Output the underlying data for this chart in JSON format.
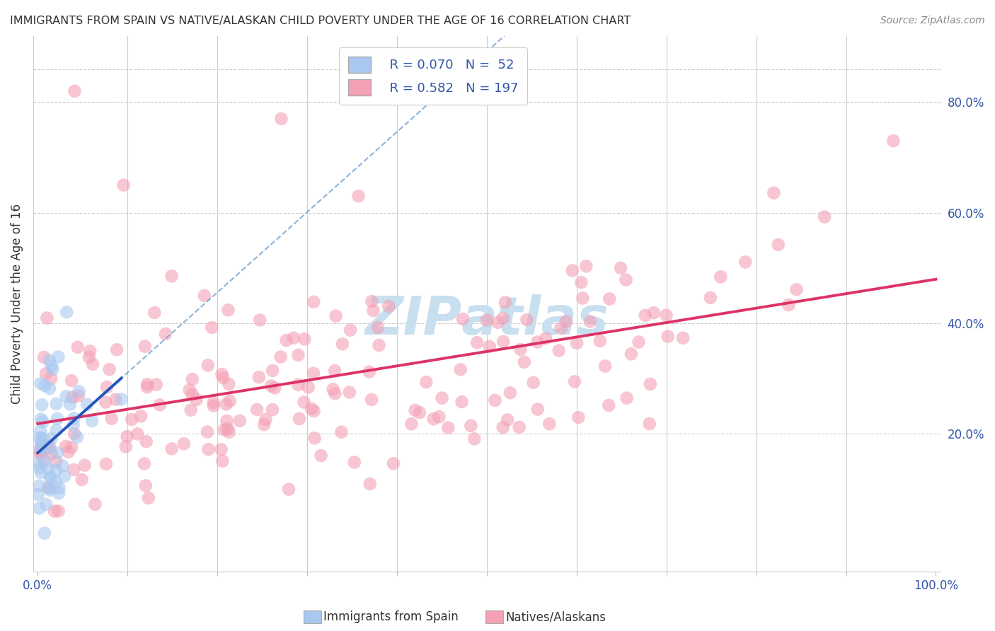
{
  "title": "IMMIGRANTS FROM SPAIN VS NATIVE/ALASKAN CHILD POVERTY UNDER THE AGE OF 16 CORRELATION CHART",
  "source": "Source: ZipAtlas.com",
  "xlabel_blue": "Immigrants from Spain",
  "xlabel_pink": "Natives/Alaskans",
  "ylabel": "Child Poverty Under the Age of 16",
  "legend_blue_R": "R = 0.070",
  "legend_blue_N": "N =  52",
  "legend_pink_R": "R = 0.582",
  "legend_pink_N": "N = 197",
  "blue_scatter_color": "#a8c8f0",
  "pink_scatter_color": "#f4a0b5",
  "blue_line_color": "#2255bb",
  "pink_line_color": "#dd3366",
  "dash_line_color": "#6699cc",
  "watermark_color": "#c8dff0",
  "title_color": "#333333",
  "source_color": "#888888",
  "axis_label_color": "#3355aa",
  "ylabel_color": "#333333",
  "grid_color": "#cccccc",
  "legend_text_color": "#3355aa",
  "xlim": [
    -0.005,
    1.005
  ],
  "ylim": [
    -0.05,
    0.92
  ],
  "y_ticks": [
    0.2,
    0.4,
    0.6,
    0.8
  ],
  "y_tick_labels": [
    "20.0%",
    "40.0%",
    "60.0%",
    "80.0%"
  ],
  "x_ticks": [
    0.0,
    0.1,
    0.2,
    0.3,
    0.4,
    0.5,
    0.6,
    0.7,
    0.8,
    0.9,
    1.0
  ],
  "x_tick_labels_show": [
    "0.0%",
    "",
    "",
    "",
    "",
    "",
    "",
    "",
    "",
    "",
    "100.0%"
  ],
  "blue_N": 52,
  "pink_N": 197,
  "blue_R": 0.07,
  "pink_R": 0.582,
  "blue_seed": 101,
  "pink_seed": 202,
  "scatter_size": 180,
  "scatter_alpha": 0.6
}
